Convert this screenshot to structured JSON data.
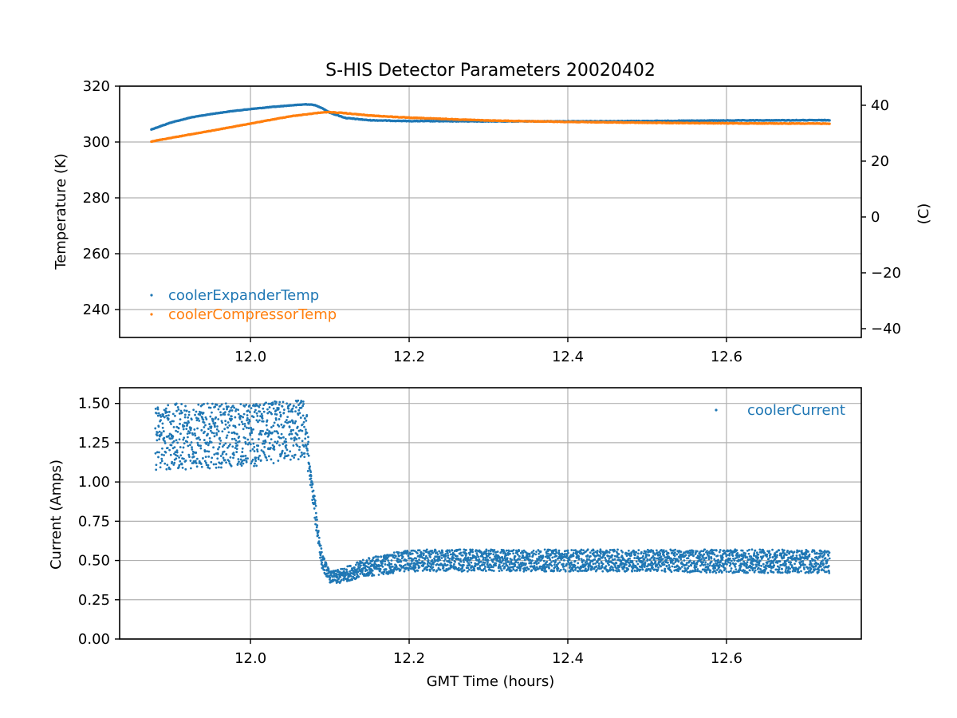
{
  "chart_data": [
    {
      "type": "scatter",
      "title": "S-HIS Detector Parameters 20020402",
      "xlabel": "",
      "ylabel": "Temperature (K)",
      "ylabel_right": "(C)",
      "xlim": [
        11.835,
        12.77
      ],
      "ylim": [
        230,
        320
      ],
      "ylim_right": [
        -43.15,
        46.85
      ],
      "x_ticks": [
        12.0,
        12.2,
        12.4,
        12.6
      ],
      "x_tick_labels": [
        "12.0",
        "12.2",
        "12.4",
        "12.6"
      ],
      "y_ticks": [
        240,
        260,
        280,
        300,
        320
      ],
      "y_tick_labels": [
        "240",
        "260",
        "280",
        "300",
        "320"
      ],
      "y_right_ticks": [
        -40,
        -20,
        0,
        20,
        40
      ],
      "y_right_tick_labels": [
        "−40",
        "−20",
        "0",
        "20",
        "40"
      ],
      "grid": true,
      "legend_position": "lower-left",
      "series": [
        {
          "name": "coolerExpanderTemp",
          "color": "#1f77b4",
          "x": [
            11.875,
            11.9,
            11.925,
            11.95,
            11.975,
            12.0,
            12.025,
            12.05,
            12.07,
            12.08,
            12.09,
            12.1,
            12.12,
            12.15,
            12.2,
            12.3,
            12.4,
            12.5,
            12.6,
            12.7,
            12.73
          ],
          "y": [
            304.5,
            307.0,
            308.8,
            310.0,
            311.0,
            311.8,
            312.5,
            313.1,
            313.5,
            313.3,
            312.2,
            310.5,
            308.6,
            307.8,
            307.5,
            307.4,
            307.4,
            307.5,
            307.7,
            307.8,
            307.8
          ]
        },
        {
          "name": "coolerCompressorTemp",
          "color": "#ff7f0e",
          "x": [
            11.875,
            11.9,
            11.95,
            12.0,
            12.05,
            12.09,
            12.1,
            12.12,
            12.15,
            12.2,
            12.3,
            12.4,
            12.5,
            12.6,
            12.7,
            12.73
          ],
          "y": [
            300.2,
            301.5,
            304.0,
            306.6,
            309.2,
            310.6,
            310.7,
            310.3,
            309.5,
            308.7,
            307.7,
            307.2,
            306.9,
            306.7,
            306.6,
            306.6
          ]
        }
      ]
    },
    {
      "type": "scatter",
      "title": "",
      "xlabel": "GMT Time (hours)",
      "ylabel": "Current (Amps)",
      "xlim": [
        11.835,
        12.77
      ],
      "ylim": [
        0.0,
        1.6
      ],
      "x_ticks": [
        12.0,
        12.2,
        12.4,
        12.6
      ],
      "x_tick_labels": [
        "12.0",
        "12.2",
        "12.4",
        "12.6"
      ],
      "y_ticks": [
        0.0,
        0.25,
        0.5,
        0.75,
        1.0,
        1.25,
        1.5
      ],
      "y_tick_labels": [
        "0.00",
        "0.25",
        "0.50",
        "0.75",
        "1.00",
        "1.25",
        "1.50"
      ],
      "grid": true,
      "legend_position": "upper-right",
      "series": [
        {
          "name": "coolerCurrent",
          "color": "#1f77b4",
          "x": [
            11.88,
            11.92,
            11.96,
            11.99,
            12.01,
            12.04,
            12.07,
            12.075,
            12.08,
            12.085,
            12.09,
            12.1,
            12.11,
            12.13,
            12.15,
            12.2,
            12.3,
            12.4,
            12.5,
            12.6,
            12.7,
            12.73
          ],
          "y_low": [
            1.07,
            1.08,
            1.09,
            1.1,
            1.1,
            1.13,
            1.13,
            1.0,
            0.8,
            0.6,
            0.45,
            0.36,
            0.35,
            0.38,
            0.4,
            0.43,
            0.43,
            0.43,
            0.43,
            0.42,
            0.42,
            0.42
          ],
          "y_high": [
            1.5,
            1.5,
            1.5,
            1.5,
            1.5,
            1.52,
            1.53,
            1.1,
            0.95,
            0.75,
            0.55,
            0.43,
            0.44,
            0.48,
            0.52,
            0.57,
            0.57,
            0.57,
            0.57,
            0.57,
            0.57,
            0.56
          ]
        }
      ]
    }
  ]
}
